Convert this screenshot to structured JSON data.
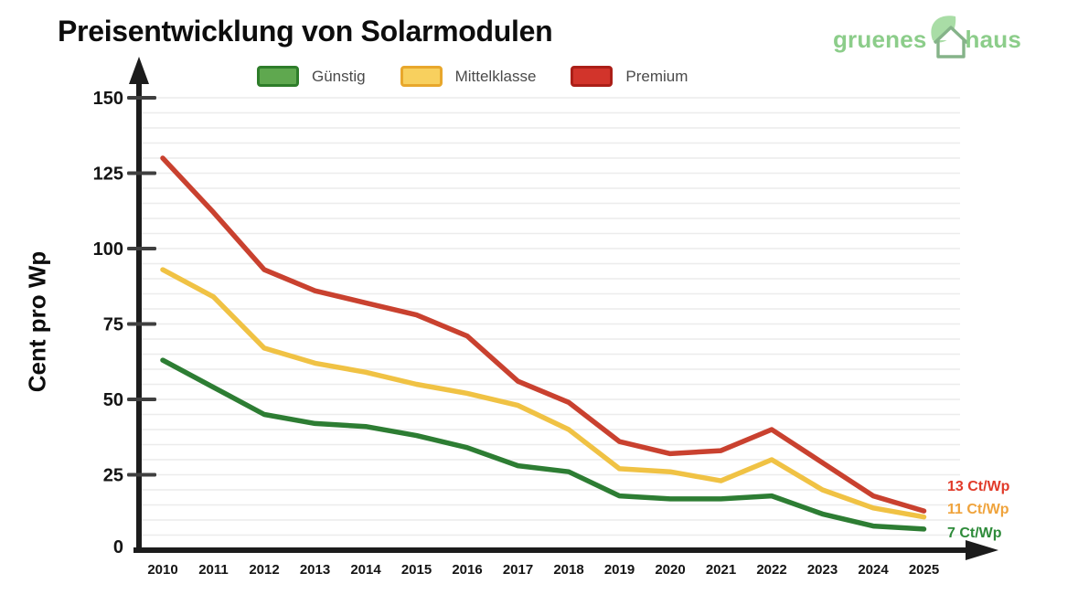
{
  "title": "Preisentwicklung von Solarmodulen",
  "logo": {
    "left_text": "gruenes",
    "right_text": "haus",
    "text_color": "#8ccd8a",
    "house_stroke": "#85b389",
    "leaf_fill": "#a9dda6"
  },
  "legend": [
    {
      "label": "Günstig",
      "fill": "#5fa84f",
      "border": "#2e7d2a"
    },
    {
      "label": "Mittelklasse",
      "fill": "#f8d05e",
      "border": "#e8a72c"
    },
    {
      "label": "Premium",
      "fill": "#d2342b",
      "border": "#ab1f18"
    }
  ],
  "chart_data": {
    "type": "line",
    "title": "Preisentwicklung von Solarmodulen",
    "xlabel": "",
    "ylabel": "Cent pro Wp",
    "x": [
      "2010",
      "2011",
      "2012",
      "2013",
      "2014",
      "2015",
      "2016",
      "2017",
      "2018",
      "2019",
      "2020",
      "2021",
      "2022",
      "2023",
      "2024",
      "2025"
    ],
    "ylim": [
      0,
      150
    ],
    "yticks": [
      0,
      25,
      50,
      75,
      100,
      125,
      150
    ],
    "grid": {
      "orientation": "horizontal",
      "step": 5,
      "color": "#ececec"
    },
    "legend_position": "top-center",
    "axis_color": "#1c1c1c",
    "tick_color": "#3f3f3f",
    "label_color": "#141414",
    "series": [
      {
        "name": "Günstig",
        "color": "#2d7d33",
        "values": [
          63,
          54,
          45,
          42,
          41,
          38,
          34,
          28,
          26,
          18,
          17,
          17,
          18,
          12,
          8,
          7
        ],
        "end_label": "7 Ct/Wp",
        "end_label_color": "#2e8b3a"
      },
      {
        "name": "Mittelklasse",
        "color": "#f0c244",
        "values": [
          93,
          84,
          67,
          62,
          59,
          55,
          52,
          48,
          40,
          27,
          26,
          23,
          30,
          20,
          14,
          11
        ],
        "end_label": "11 Ct/Wp",
        "end_label_color": "#efa33c"
      },
      {
        "name": "Premium",
        "color": "#c9412f",
        "values": [
          130,
          112,
          93,
          86,
          82,
          78,
          71,
          56,
          49,
          36,
          32,
          33,
          40,
          29,
          18,
          13
        ],
        "end_label": "13 Ct/Wp",
        "end_label_color": "#e13b2a"
      }
    ]
  }
}
